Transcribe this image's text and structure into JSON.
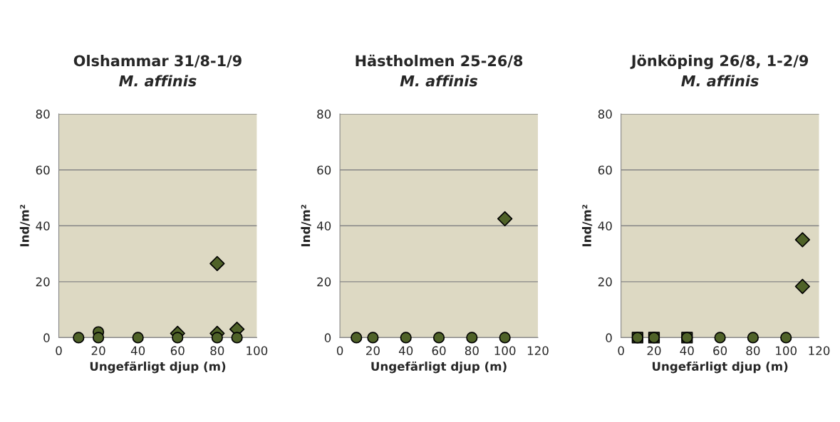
{
  "chart_data": [
    {
      "type": "scatter",
      "title": "Olshammar 31/8-1/9",
      "subtitle": "M. affinis",
      "xlabel": "Ungefärligt djup (m)",
      "ylabel": "Ind/m²",
      "xlim": [
        0,
        100
      ],
      "xticks": [
        0,
        20,
        40,
        60,
        80,
        100
      ],
      "ylim": [
        0,
        80
      ],
      "yticks": [
        0,
        20,
        40,
        60,
        80
      ],
      "grid": "y",
      "legend": false,
      "series": [
        {
          "marker": "diamond",
          "color": "#4f6228",
          "x": [
            60,
            80,
            80,
            90
          ],
          "values": [
            1.5,
            26.5,
            1.5,
            3
          ]
        },
        {
          "marker": "circle",
          "color": "#4f6228",
          "x": [
            10,
            20,
            20,
            40,
            60,
            80,
            90
          ],
          "values": [
            0,
            2,
            0,
            0,
            0,
            0,
            0
          ]
        }
      ]
    },
    {
      "type": "scatter",
      "title": "Hästholmen 25-26/8",
      "subtitle": "M. affinis",
      "xlabel": "Ungefärligt djup (m)",
      "ylabel": "Ind/m²",
      "xlim": [
        0,
        120
      ],
      "xticks": [
        0,
        20,
        40,
        60,
        80,
        100,
        120
      ],
      "ylim": [
        0,
        80
      ],
      "yticks": [
        0,
        20,
        40,
        60,
        80
      ],
      "grid": "y",
      "legend": false,
      "series": [
        {
          "marker": "diamond",
          "color": "#4f6228",
          "x": [
            100
          ],
          "values": [
            42.5
          ]
        },
        {
          "marker": "circle",
          "color": "#4f6228",
          "x": [
            10,
            20,
            40,
            60,
            80,
            100
          ],
          "values": [
            0,
            0,
            0,
            0,
            0,
            0
          ]
        }
      ]
    },
    {
      "type": "scatter",
      "title": "Jönköping 26/8, 1-2/9",
      "subtitle": "M. affinis",
      "xlabel": "Ungefärligt djup (m)",
      "ylabel": "Ind/m²",
      "xlim": [
        0,
        120
      ],
      "xticks": [
        0,
        20,
        40,
        60,
        80,
        100,
        120
      ],
      "ylim": [
        0,
        80
      ],
      "yticks": [
        0,
        20,
        40,
        60,
        80
      ],
      "grid": "y",
      "legend": false,
      "series": [
        {
          "marker": "diamond",
          "color": "#4f6228",
          "x": [
            110,
            110
          ],
          "values": [
            35,
            18.3
          ]
        },
        {
          "marker": "square",
          "color": "#4f6228",
          "x": [
            10,
            20,
            40
          ],
          "values": [
            0,
            0,
            0
          ]
        },
        {
          "marker": "circle",
          "color": "#4f6228",
          "x": [
            10,
            20,
            40,
            60,
            80,
            100
          ],
          "values": [
            0,
            0,
            0,
            0,
            0,
            0
          ]
        }
      ]
    }
  ]
}
